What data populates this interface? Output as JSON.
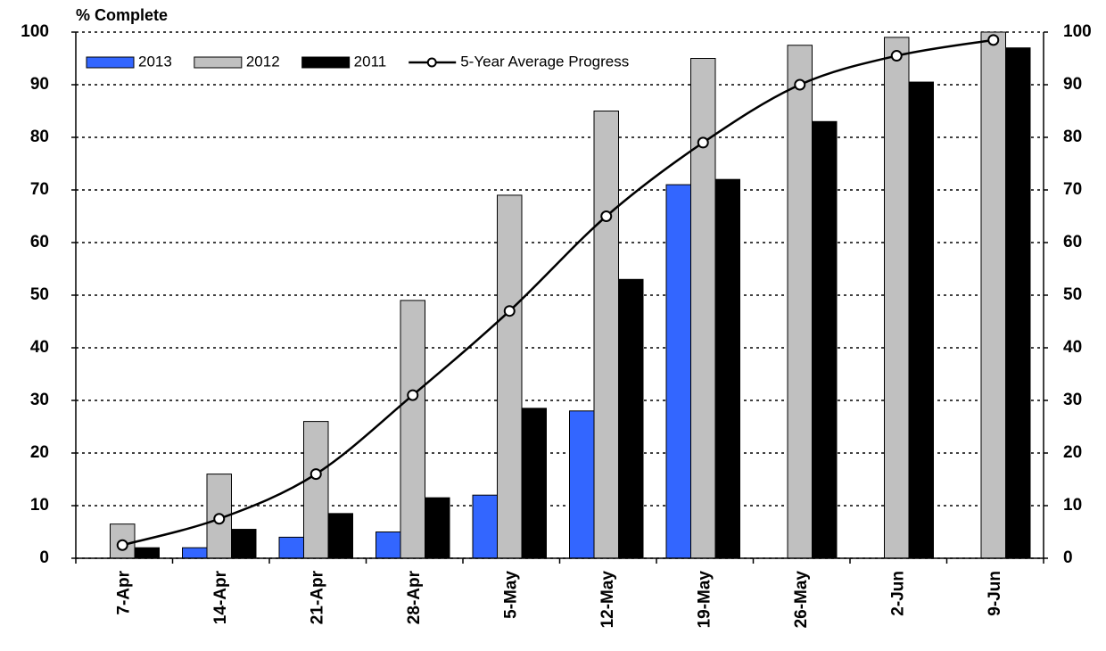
{
  "chart_data": {
    "type": "bar",
    "title": "% Complete",
    "categories": [
      "7-Apr",
      "14-Apr",
      "21-Apr",
      "28-Apr",
      "5-May",
      "12-May",
      "19-May",
      "26-May",
      "2-Jun",
      "9-Jun"
    ],
    "series": [
      {
        "name": "2013",
        "type": "bar",
        "color": "#3366ff",
        "values": [
          null,
          2,
          4,
          5,
          12,
          28,
          71,
          null,
          null,
          null
        ]
      },
      {
        "name": "2012",
        "type": "bar",
        "color": "#c0c0c0",
        "values": [
          6.5,
          16,
          26,
          49,
          69,
          85,
          95,
          97.5,
          99,
          100
        ]
      },
      {
        "name": "2011",
        "type": "bar",
        "color": "#000000",
        "values": [
          2,
          5.5,
          8.5,
          11.5,
          28.5,
          53,
          72,
          83,
          90.5,
          97
        ]
      },
      {
        "name": "5-Year Average Progress",
        "type": "line",
        "color": "#000000",
        "values": [
          2.5,
          7.5,
          16,
          31,
          47,
          65,
          79,
          90,
          95.5,
          98.5
        ]
      }
    ],
    "ylim": [
      0,
      100
    ],
    "yticks": [
      0,
      10,
      20,
      30,
      40,
      50,
      60,
      70,
      80,
      90,
      100
    ],
    "y2lim": [
      0,
      100
    ],
    "y2ticks": [
      0,
      10,
      20,
      30,
      40,
      50,
      60,
      70,
      80,
      90,
      100
    ],
    "grid": true,
    "legend": "top-left"
  }
}
